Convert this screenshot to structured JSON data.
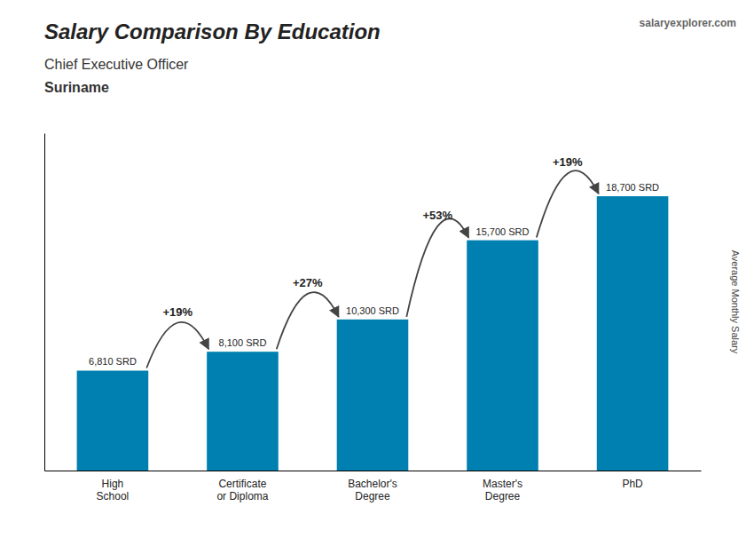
{
  "chart_data": {
    "type": "bar",
    "title": "Salary Comparison By Education",
    "subtitle": [
      "Chief Executive Officer",
      "Suriname"
    ],
    "watermark": "salaryexplorer.com",
    "ylabel": "Average Monthly Salary",
    "categories": [
      "High\nSchool",
      "Certificate\nor Diploma",
      "Bachelor's\nDegree",
      "Master's\nDegree",
      "PhD"
    ],
    "values": [
      6810,
      8100,
      10300,
      15700,
      18700
    ],
    "value_labels": [
      "6,810 SRD",
      "8,100 SRD",
      "10,300 SRD",
      "15,700 SRD",
      "18,700 SRD"
    ],
    "data_labels": true,
    "annotations": [
      "+19%",
      "+27%",
      "+53%",
      "+19%"
    ],
    "color": "#0080b0",
    "ylim": [
      0,
      23000
    ],
    "tick_labels": "x",
    "grid": false
  }
}
